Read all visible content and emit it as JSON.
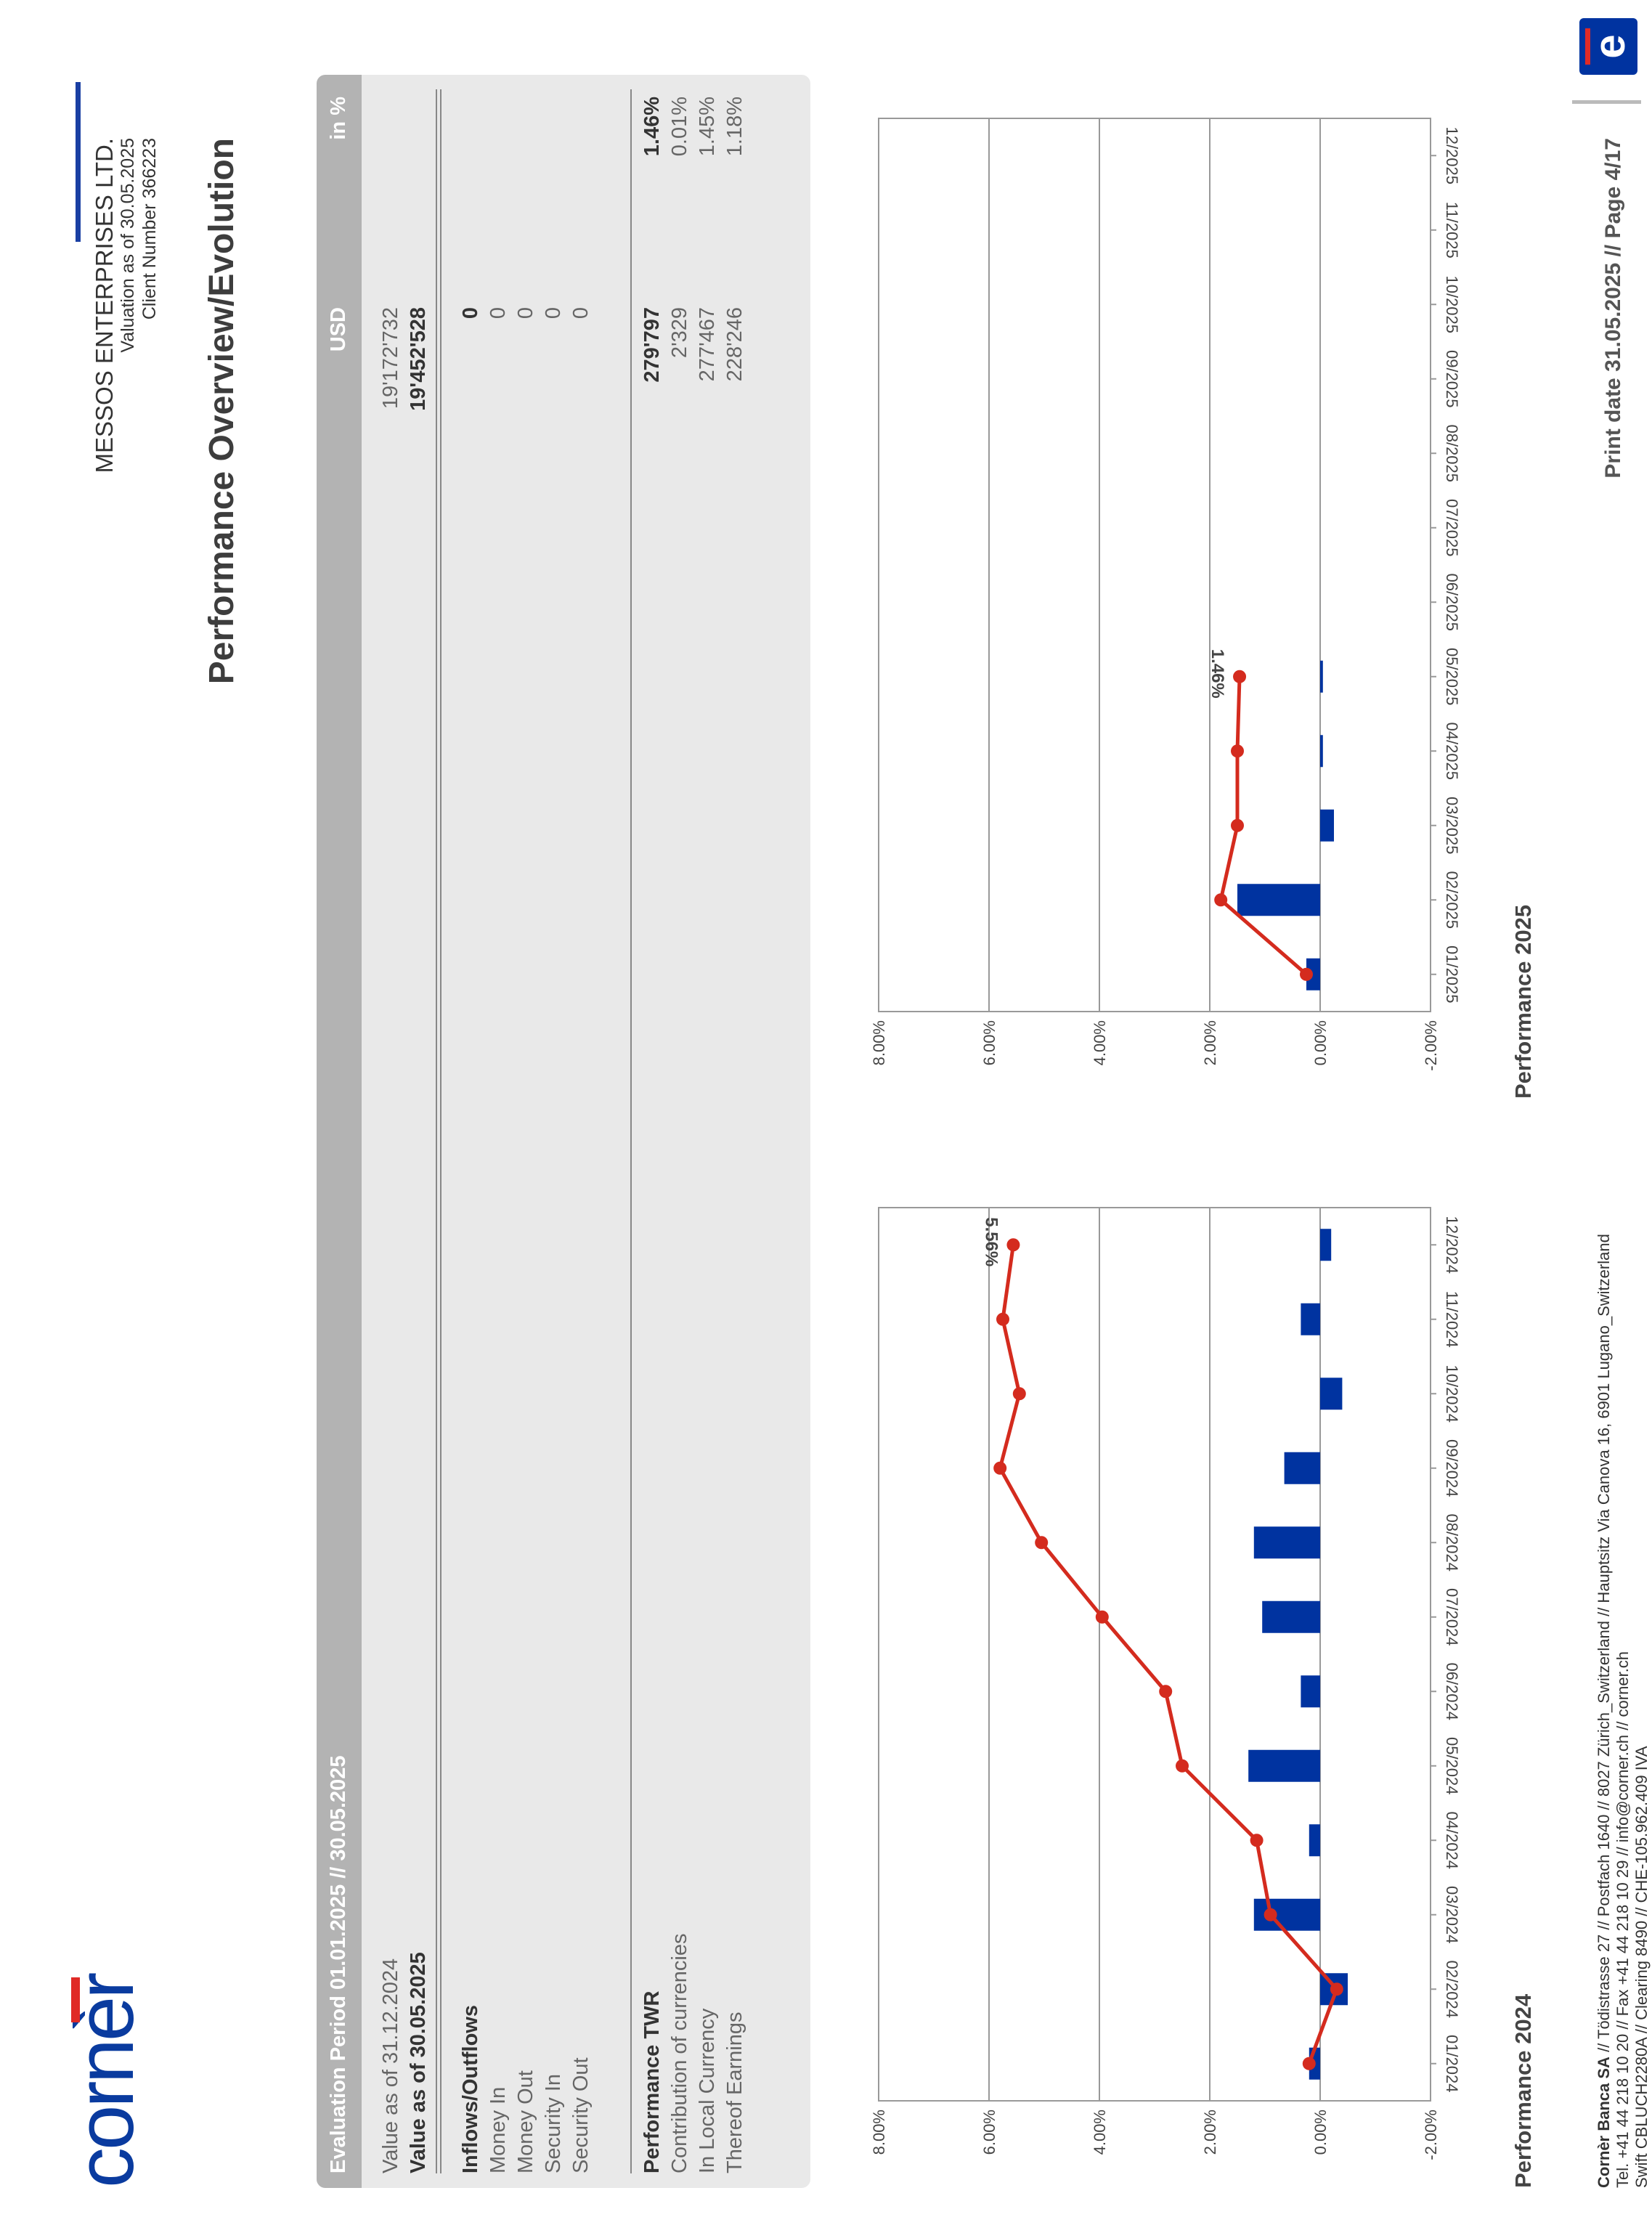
{
  "header": {
    "logo_text": "cornèr",
    "client_name": "MESSOS ENTERPRISES LTD.",
    "valuation": "Valuation as of 30.05.2025",
    "client_number": "Client Number 366223",
    "page_title": "Performance Overview/Evolution"
  },
  "panel": {
    "period": "Evaluation Period 01.01.2025 // 30.05.2025",
    "currency_header": "USD",
    "percent_header": "in %",
    "rows": [
      {
        "label": "Value as of 31.12.2024",
        "value": "19'172'732",
        "pct": "",
        "bold": false
      },
      {
        "label": "Value as of 30.05.2025",
        "value": "19'452'528",
        "pct": "",
        "bold": true
      },
      {
        "label": "Inflows/Outflows",
        "value": "0",
        "pct": "",
        "bold": true
      },
      {
        "label": "Money In",
        "value": "0",
        "pct": "",
        "bold": false
      },
      {
        "label": "Money Out",
        "value": "0",
        "pct": "",
        "bold": false
      },
      {
        "label": "Security In",
        "value": "0",
        "pct": "",
        "bold": false
      },
      {
        "label": "Security Out",
        "value": "0",
        "pct": "",
        "bold": false
      },
      {
        "label": "Performance TWR",
        "value": "279'797",
        "pct": "1.46%",
        "bold": true
      },
      {
        "label": "Contribution of currencies",
        "value": "2'329",
        "pct": "0.01%",
        "bold": false
      },
      {
        "label": "In Local Currency",
        "value": "277'467",
        "pct": "1.45%",
        "bold": false
      },
      {
        "label": "Thereof Earnings",
        "value": "228'246",
        "pct": "1.18%",
        "bold": false
      }
    ]
  },
  "colors": {
    "bar": "#0033a0",
    "line": "#d42b1e",
    "grid": "#999999"
  },
  "chart_data": [
    {
      "type": "bar",
      "title": "Performance 2024",
      "categories": [
        "01/2024",
        "02/2024",
        "03/2024",
        "04/2024",
        "05/2024",
        "06/2024",
        "07/2024",
        "08/2024",
        "09/2024",
        "10/2024",
        "11/2024",
        "12/2024"
      ],
      "series": [
        {
          "type": "bar",
          "values": [
            0.2,
            -0.5,
            1.2,
            0.2,
            1.3,
            0.35,
            1.05,
            1.2,
            0.65,
            -0.4,
            0.35,
            -0.2
          ]
        },
        {
          "type": "line",
          "values": [
            0.2,
            -0.3,
            0.9,
            1.15,
            2.5,
            2.8,
            3.95,
            5.05,
            5.8,
            5.45,
            5.75,
            5.56
          ]
        }
      ],
      "annotation": "5.56%",
      "ylim": [
        -2,
        8
      ],
      "yticks": [
        "-2.00%",
        "0.00%",
        "2.00%",
        "4.00%",
        "6.00%",
        "8.00%"
      ],
      "grid": true
    },
    {
      "type": "bar",
      "title": "Performance 2025",
      "categories": [
        "01/2025",
        "02/2025",
        "03/2025",
        "04/2025",
        "05/2025",
        "06/2025",
        "07/2025",
        "08/2025",
        "09/2025",
        "10/2025",
        "11/2025",
        "12/2025"
      ],
      "series": [
        {
          "type": "bar",
          "values": [
            0.25,
            1.5,
            -0.25,
            -0.05,
            -0.05,
            null,
            null,
            null,
            null,
            null,
            null,
            null
          ]
        },
        {
          "type": "line",
          "values": [
            0.25,
            1.8,
            1.5,
            1.5,
            1.46,
            null,
            null,
            null,
            null,
            null,
            null,
            null
          ]
        }
      ],
      "annotation": "1.46%",
      "ylim": [
        -2,
        8
      ],
      "yticks": [
        "-2.00%",
        "0.00%",
        "2.00%",
        "4.00%",
        "6.00%",
        "8.00%"
      ],
      "grid": true
    }
  ],
  "footer": {
    "line1_bold": "Cornèr Banca SA",
    "line1": " // Tödistrasse 27 // Postfach 1640 // 8027 Zürich_Switzerland // Hauptsitz Via Canova 16, 6901 Lugano_Switzerland",
    "line2": "Tel. +41 44 218 10 20 // Fax +41 44 218 10 29 // info@corner.ch // corner.ch",
    "line3": "Swift CBLUCH2280A // Clearing 8490 // CHE-105.962.409 IVA",
    "print_date": "Print date 31.05.2025 // Page 4/17"
  }
}
